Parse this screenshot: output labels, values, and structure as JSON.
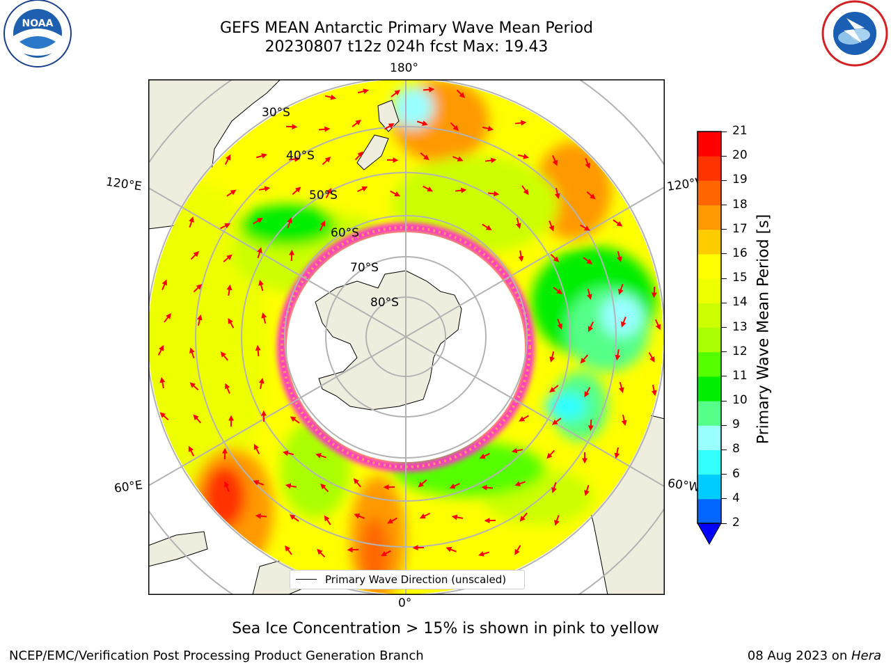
{
  "header": {
    "title_line1": "GEFS MEAN Antarctic Primary Wave Mean Period",
    "title_line2": "20230807 t12z 024h fcst   Max: 19.43"
  },
  "logos": {
    "left": {
      "icon": "noaa-logo",
      "text": "NOAA",
      "ring_text": "NATIONAL OCEANIC AND ATMOSPHERIC ADMINISTRATION · U.S. DEPARTMENT OF COMMERCE"
    },
    "right": {
      "icon": "nws-logo",
      "ring_text": "NATIONAL WEATHER SERVICE"
    }
  },
  "map": {
    "projection": "south-polar-stereographic",
    "longitude_labels": {
      "top": "180°",
      "bottom": "0°",
      "upper_left": "120°E",
      "upper_right": "120°W",
      "lower_left": "60°E",
      "lower_right": "60°W"
    },
    "latitude_labels": [
      "30°S",
      "40°S",
      "50°S",
      "60°S",
      "70°S",
      "80°S"
    ],
    "legend_label": "Primary Wave Direction (unscaled)",
    "colors": {
      "land": "#efedde",
      "ice_edge": "#ff33cc",
      "arrow": "#ff0000",
      "grid": "#b3b3b3"
    }
  },
  "colorbar": {
    "label": "Primary Wave Mean Period [s]",
    "ticks": [
      "2",
      "4",
      "6",
      "8",
      "9",
      "10",
      "11",
      "12",
      "13",
      "14",
      "15",
      "16",
      "17",
      "18",
      "19",
      "20",
      "21"
    ],
    "colors": [
      "#0066ff",
      "#00ccff",
      "#33ffff",
      "#99ffff",
      "#55ff88",
      "#00ee00",
      "#55ff00",
      "#aaff00",
      "#ccff00",
      "#eeff00",
      "#ffff00",
      "#ffcc00",
      "#ff9900",
      "#ff6600",
      "#ff3300",
      "#ff0000"
    ],
    "extend_color": "#0000ff"
  },
  "note": "Sea Ice Concentration > 15% is shown in pink to yellow",
  "footer": {
    "left": "NCEP/EMC/Verification Post Processing Product Generation Branch",
    "right_date": "08 Aug 2023 on ",
    "right_host": "Hera"
  }
}
